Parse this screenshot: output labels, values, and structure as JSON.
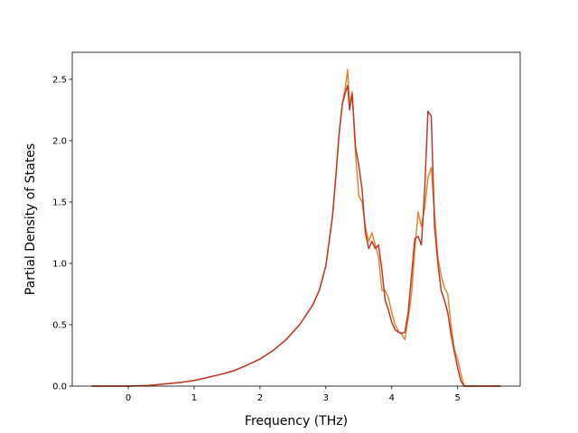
{
  "chart_data": {
    "type": "line",
    "title": "",
    "xlabel": "Frequency (THz)",
    "ylabel": "Partial Density of States",
    "xlim": [
      -0.85,
      5.95
    ],
    "ylim": [
      0.0,
      2.72
    ],
    "xticks": [
      0,
      1,
      2,
      3,
      4,
      5
    ],
    "yticks": [
      0.0,
      0.5,
      1.0,
      1.5,
      2.0,
      2.5
    ],
    "xtick_labels": [
      "0",
      "1",
      "2",
      "3",
      "4",
      "5"
    ],
    "ytick_labels": [
      "0.0",
      "0.5",
      "1.0",
      "1.5",
      "2.0",
      "2.5"
    ],
    "grid": false,
    "legend": "none",
    "series": [
      {
        "color": "#e6862a",
        "x": [
          -0.55,
          0.0,
          0.3,
          0.5,
          0.8,
          1.0,
          1.2,
          1.4,
          1.6,
          1.8,
          2.0,
          2.2,
          2.4,
          2.6,
          2.8,
          2.9,
          3.0,
          3.1,
          3.15,
          3.2,
          3.25,
          3.3,
          3.33,
          3.36,
          3.4,
          3.45,
          3.5,
          3.55,
          3.6,
          3.65,
          3.7,
          3.75,
          3.8,
          3.85,
          3.9,
          3.95,
          4.0,
          4.05,
          4.1,
          4.15,
          4.2,
          4.25,
          4.3,
          4.35,
          4.4,
          4.45,
          4.5,
          4.55,
          4.6,
          4.65,
          4.7,
          4.75,
          4.8,
          4.85,
          4.9,
          4.95,
          5.0,
          5.05,
          5.1,
          5.15,
          5.2,
          5.4,
          5.65
        ],
        "y": [
          0.0,
          0.0,
          0.005,
          0.015,
          0.03,
          0.045,
          0.07,
          0.095,
          0.125,
          0.17,
          0.22,
          0.29,
          0.38,
          0.5,
          0.66,
          0.78,
          0.98,
          1.38,
          1.7,
          2.05,
          2.3,
          2.45,
          2.58,
          2.3,
          2.4,
          1.9,
          1.55,
          1.5,
          1.3,
          1.18,
          1.25,
          1.15,
          1.05,
          0.78,
          0.78,
          0.72,
          0.6,
          0.5,
          0.45,
          0.42,
          0.38,
          0.55,
          0.75,
          1.1,
          1.42,
          1.3,
          1.45,
          1.7,
          1.78,
          1.4,
          1.05,
          0.9,
          0.8,
          0.75,
          0.5,
          0.3,
          0.22,
          0.1,
          0.0,
          0.0,
          0.0,
          0.0,
          0.0
        ]
      },
      {
        "color": "#c0392b",
        "x": [
          -0.55,
          0.0,
          0.3,
          0.5,
          0.8,
          1.0,
          1.2,
          1.4,
          1.6,
          1.8,
          2.0,
          2.2,
          2.4,
          2.6,
          2.8,
          2.9,
          3.0,
          3.1,
          3.15,
          3.2,
          3.25,
          3.3,
          3.33,
          3.36,
          3.4,
          3.45,
          3.5,
          3.55,
          3.6,
          3.65,
          3.7,
          3.75,
          3.8,
          3.85,
          3.9,
          3.95,
          4.0,
          4.05,
          4.1,
          4.15,
          4.2,
          4.25,
          4.3,
          4.35,
          4.4,
          4.45,
          4.5,
          4.55,
          4.6,
          4.65,
          4.7,
          4.75,
          4.8,
          4.85,
          4.9,
          4.95,
          5.0,
          5.05,
          5.1,
          5.15,
          5.2,
          5.4,
          5.65
        ],
        "y": [
          0.0,
          0.0,
          0.005,
          0.015,
          0.03,
          0.045,
          0.07,
          0.095,
          0.125,
          0.17,
          0.22,
          0.29,
          0.38,
          0.5,
          0.66,
          0.78,
          0.98,
          1.38,
          1.7,
          2.05,
          2.3,
          2.4,
          2.45,
          2.25,
          2.38,
          1.95,
          1.8,
          1.6,
          1.25,
          1.12,
          1.18,
          1.12,
          1.15,
          0.95,
          0.7,
          0.62,
          0.52,
          0.46,
          0.44,
          0.43,
          0.44,
          0.6,
          0.9,
          1.2,
          1.22,
          1.15,
          1.6,
          2.24,
          2.2,
          1.3,
          1.0,
          0.78,
          0.7,
          0.6,
          0.42,
          0.28,
          0.15,
          0.04,
          0.0,
          0.0,
          0.0,
          0.0,
          0.0
        ]
      }
    ]
  }
}
